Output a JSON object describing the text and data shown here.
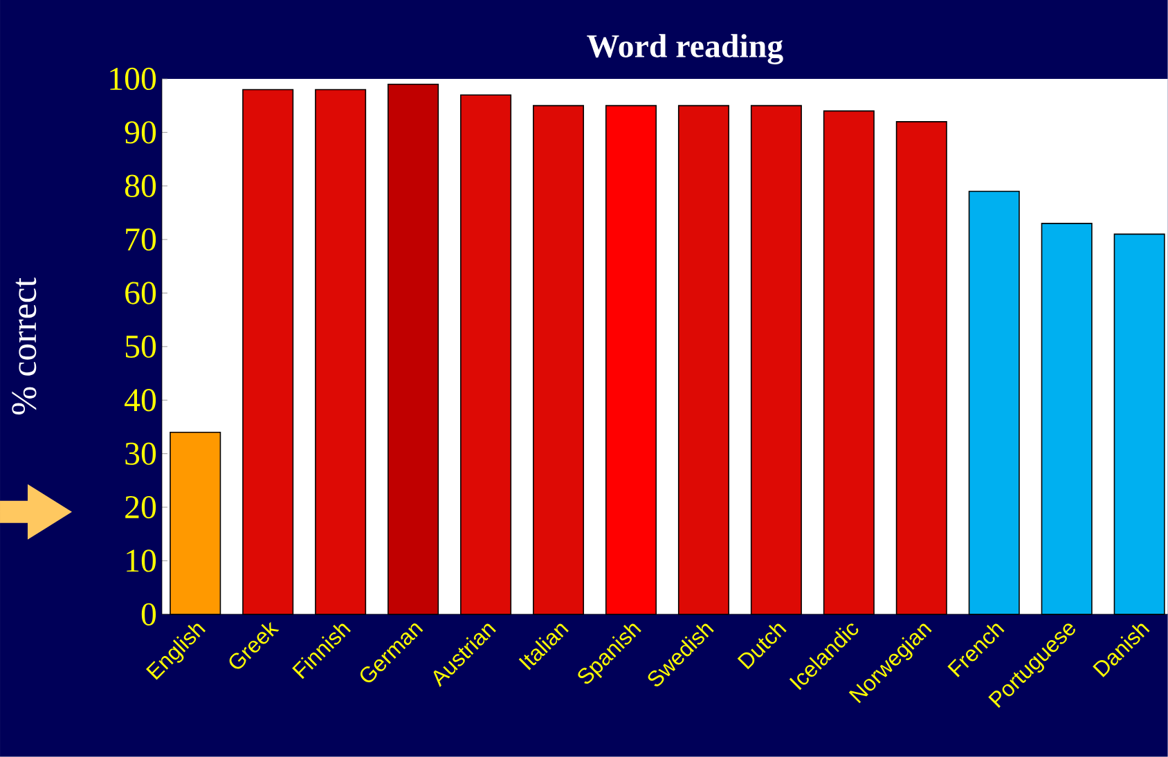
{
  "chart_data": {
    "type": "bar",
    "title": "Word reading",
    "ylabel": "% correct",
    "categories": [
      "English",
      "Greek",
      "Finnish",
      "German",
      "Austrian",
      "Italian",
      "Spanish",
      "Swedish",
      "Dutch",
      "Icelandic",
      "Norwegian",
      "French",
      "Portuguese",
      "Danish"
    ],
    "values": [
      34,
      98,
      98,
      99,
      97,
      95,
      95,
      95,
      95,
      94,
      92,
      79,
      73,
      71
    ],
    "colors": [
      "#ff9900",
      "#dd0a05",
      "#dd0a05",
      "#c00000",
      "#dd0a05",
      "#dd0a05",
      "#ff0000",
      "#dd0a05",
      "#dd0a05",
      "#dd0a05",
      "#dd0a05",
      "#00b0f0",
      "#00b0f0",
      "#00b0f0"
    ],
    "ylim": [
      0,
      100
    ],
    "yticks": [
      0,
      10,
      20,
      30,
      40,
      50,
      60,
      70,
      80,
      90,
      100
    ]
  }
}
